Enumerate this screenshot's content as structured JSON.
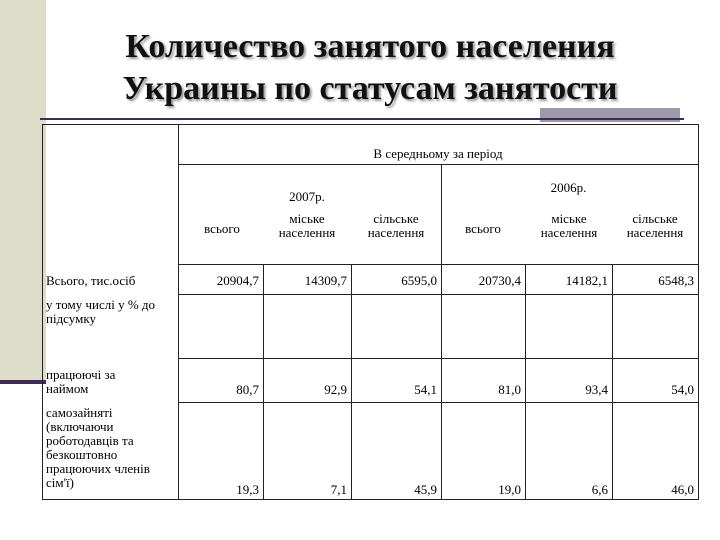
{
  "title": {
    "line1": "Количество занятого населения",
    "line2": "Украины по статусам занятости"
  },
  "table": {
    "period_header": "В середньому за період",
    "years": [
      "2007р.",
      "2006р."
    ],
    "sub_headers": [
      "всього",
      "міське населення",
      "сільське населення",
      "всього",
      "міське населення",
      "сільське населення"
    ],
    "rows": [
      {
        "label": "Всього, тис.осіб",
        "values": [
          "20904,7",
          "14309,7",
          "6595,0",
          "20730,4",
          "14182,1",
          "6548,3"
        ]
      },
      {
        "label": "у тому числі у % до підсумку",
        "values": [
          "",
          "",
          "",
          "",
          "",
          ""
        ]
      },
      {
        "label": "працюючі за наймом",
        "values": [
          "80,7",
          "92,9",
          "54,1",
          "81,0",
          "93,4",
          "54,0"
        ]
      },
      {
        "label": "самозайняті (включаючи роботодавців та безкоштовно працюючих членів сім'ї)",
        "values": [
          "19,3",
          "7,1",
          "45,9",
          "19,0",
          "6,6",
          "46,0"
        ]
      }
    ]
  }
}
